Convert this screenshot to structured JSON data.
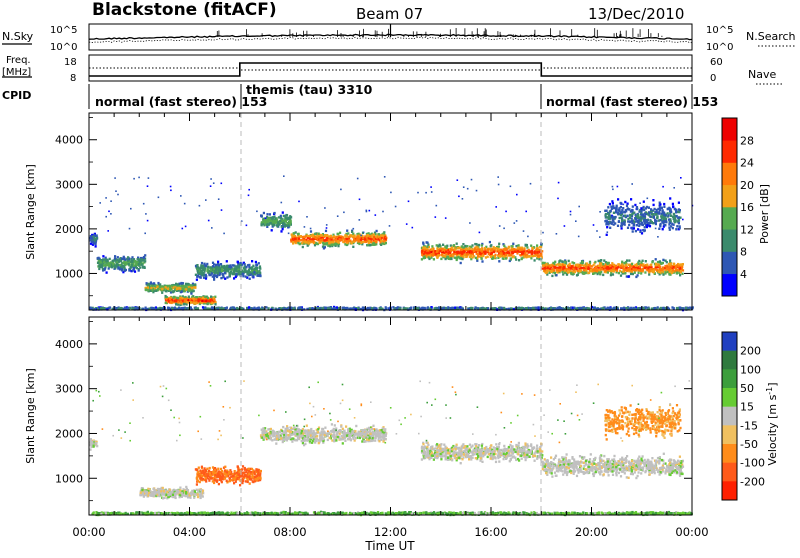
{
  "header": {
    "station": "Blackstone (fitACF)",
    "beam": "Beam 07",
    "date": "13/Dec/2010"
  },
  "top_panels": {
    "nsky": {
      "label": "N.Sky",
      "ticks": [
        "10^5",
        "10^0"
      ]
    },
    "nsearch": {
      "label": "N.Search",
      "ticks": [
        "10^5",
        "10^0"
      ]
    },
    "freq": {
      "label_line1": "Freq.",
      "label_line2": "[MHz]",
      "ticks": [
        "18",
        "8"
      ]
    },
    "nave": {
      "label": "Nave",
      "ticks": [
        "60",
        "0"
      ]
    },
    "cpid": {
      "label": "CPID",
      "segments": [
        {
          "text": "normal (fast stereo) 153",
          "start_hour": 0
        },
        {
          "text": "themis (tau) 3310",
          "start_hour": 6
        },
        {
          "text": "normal (fast stereo) 153",
          "start_hour": 18
        }
      ]
    }
  },
  "chart_data": [
    {
      "type": "heatmap",
      "name": "power",
      "ylabel": "Slant Range [km]",
      "xlabel": "Time UT",
      "x_ticks": [
        "00:00",
        "04:00",
        "08:00",
        "12:00",
        "16:00",
        "20:00",
        "00:00"
      ],
      "y_ticks": [
        1000,
        2000,
        3000,
        4000
      ],
      "xlim_hours": [
        0,
        24
      ],
      "ylim_km": [
        180,
        4600
      ],
      "colorbar": {
        "label": "Power [dB]",
        "ticks": [
          4,
          8,
          12,
          16,
          20,
          24,
          28
        ],
        "range": [
          0,
          32
        ],
        "colors": [
          "#0000ff",
          "#2e57b4",
          "#3a8a6c",
          "#56aa50",
          "#f2a018",
          "#ff7a0a",
          "#ff2a00",
          "#ee0000"
        ]
      },
      "scatter_bands": [
        {
          "from_hour": 0.0,
          "to_hour": 0.3,
          "center_km": 1800,
          "width_km": 350,
          "peak_db": 9
        },
        {
          "from_hour": 0.3,
          "to_hour": 2.2,
          "center_km": 1250,
          "width_km": 450,
          "peak_db": 14
        },
        {
          "from_hour": 2.2,
          "to_hour": 4.2,
          "center_km": 700,
          "width_km": 300,
          "peak_db": 18
        },
        {
          "from_hour": 3.0,
          "to_hour": 5.0,
          "center_km": 420,
          "width_km": 260,
          "peak_db": 28
        },
        {
          "from_hour": 4.2,
          "to_hour": 6.8,
          "center_km": 1100,
          "width_km": 500,
          "peak_db": 12
        },
        {
          "from_hour": 6.8,
          "to_hour": 8.0,
          "center_km": 2200,
          "width_km": 500,
          "peak_db": 14
        },
        {
          "from_hour": 8.0,
          "to_hour": 11.8,
          "center_km": 1800,
          "width_km": 450,
          "peak_db": 26
        },
        {
          "from_hour": 13.2,
          "to_hour": 18.0,
          "center_km": 1500,
          "width_km": 500,
          "peak_db": 27
        },
        {
          "from_hour": 18.0,
          "to_hour": 23.6,
          "center_km": 1150,
          "width_km": 450,
          "peak_db": 26
        },
        {
          "from_hour": 20.5,
          "to_hour": 23.5,
          "center_km": 2300,
          "width_km": 900,
          "peak_db": 9
        },
        {
          "from_hour": 0.0,
          "to_hour": 24.0,
          "center_km": 240,
          "width_km": 80,
          "peak_db": 10
        }
      ]
    },
    {
      "type": "heatmap",
      "name": "velocity",
      "ylabel": "Slant Range [km]",
      "xlabel": "Time UT",
      "x_ticks": [
        "00:00",
        "04:00",
        "08:00",
        "12:00",
        "16:00",
        "20:00",
        "00:00"
      ],
      "y_ticks": [
        1000,
        2000,
        3000,
        4000
      ],
      "xlim_hours": [
        0,
        24
      ],
      "ylim_km": [
        180,
        4600
      ],
      "colorbar": {
        "label": "Velocity [m s^-1]",
        "ticks": [
          200,
          100,
          50,
          15,
          -15,
          -50,
          -100,
          -200
        ],
        "colors": [
          "#2040c0",
          "#2f7a3e",
          "#3c9e3c",
          "#66cc33",
          "#c0c0c0",
          "#f0c060",
          "#ff8c1a",
          "#ff5a1a",
          "#ff2000"
        ]
      },
      "scatter_bands": [
        {
          "from_hour": 0.0,
          "to_hour": 0.3,
          "center_km": 1800,
          "width_km": 350,
          "velocity": 0
        },
        {
          "from_hour": 2.0,
          "to_hour": 4.5,
          "center_km": 700,
          "width_km": 300,
          "velocity": 0
        },
        {
          "from_hour": 4.2,
          "to_hour": 6.8,
          "center_km": 1100,
          "width_km": 500,
          "velocity": -80
        },
        {
          "from_hour": 6.8,
          "to_hour": 11.8,
          "center_km": 2000,
          "width_km": 500,
          "velocity": 0
        },
        {
          "from_hour": 13.2,
          "to_hour": 18.0,
          "center_km": 1600,
          "width_km": 500,
          "velocity": 0
        },
        {
          "from_hour": 18.0,
          "to_hour": 23.6,
          "center_km": 1300,
          "width_km": 600,
          "velocity": 0
        },
        {
          "from_hour": 20.5,
          "to_hour": 23.5,
          "center_km": 2300,
          "width_km": 900,
          "velocity": -40
        },
        {
          "from_hour": 0.0,
          "to_hour": 24.0,
          "center_km": 240,
          "width_km": 80,
          "velocity": 30
        }
      ]
    }
  ]
}
